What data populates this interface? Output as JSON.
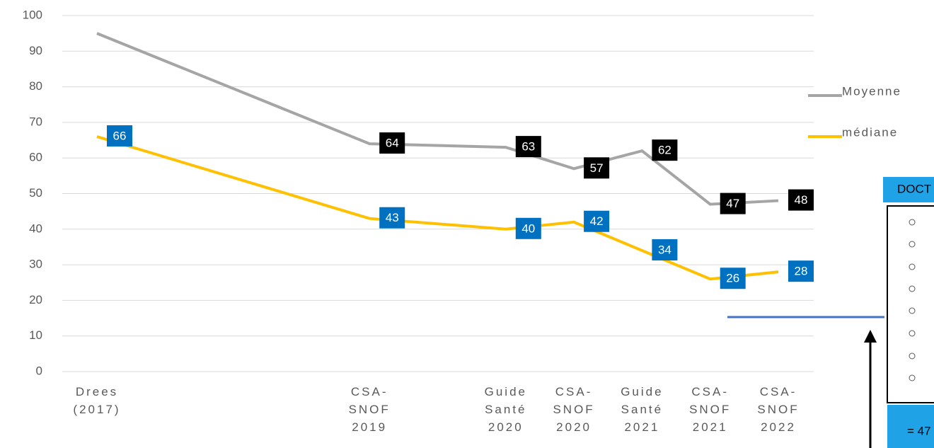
{
  "chart_data": {
    "type": "line",
    "categories": [
      "Drees (2017)",
      "CSA-SNOF 2019",
      "Guide Santé 2020",
      "CSA-SNOF 2020",
      "Guide Santé 2021",
      "CSA-SNOF 2021",
      "CSA-SNOF 2022"
    ],
    "series": [
      {
        "name": "Moyenne",
        "color": "#a5a5a5",
        "label_color": "#000000",
        "values": [
          95,
          64,
          63,
          57,
          62,
          47,
          48
        ]
      },
      {
        "name": "médiane",
        "color": "#ffc000",
        "label_color": "#0070c0",
        "values": [
          66,
          43,
          40,
          42,
          34,
          26,
          28
        ]
      }
    ],
    "ylim": [
      0,
      100
    ],
    "yticks": [
      0,
      10,
      20,
      30,
      40,
      50,
      60,
      70,
      80,
      90,
      100
    ],
    "grid": true
  },
  "side_panel": {
    "title": "DOCT",
    "result": "= 47"
  }
}
